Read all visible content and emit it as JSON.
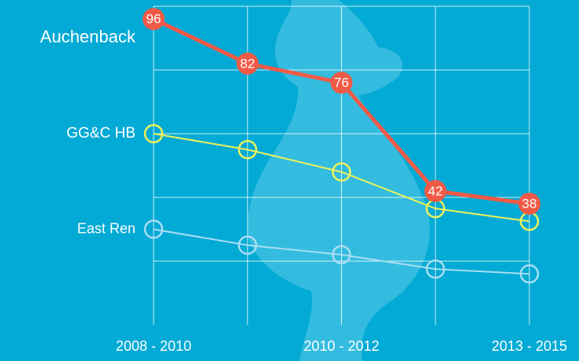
{
  "chart_data": {
    "type": "line",
    "categories": [
      "2008 - 2010",
      null,
      "2010 - 2012",
      null,
      "2013 - 2015"
    ],
    "series": [
      {
        "name": "Auchenback",
        "color": "#f15a47",
        "values": [
          96,
          82,
          76,
          42,
          38
        ],
        "labels": true
      },
      {
        "name": "GG&C HB",
        "color": "#eef25a",
        "values": [
          60,
          55,
          48,
          36.5,
          32.5
        ],
        "labels": false
      },
      {
        "name": "East Ren",
        "color": "#a9ddf2",
        "values": [
          30,
          25,
          22,
          17.5,
          16
        ],
        "labels": false
      }
    ],
    "ylim": [
      0,
      100
    ],
    "yticks": [
      0,
      20,
      40,
      60,
      80,
      100
    ],
    "grid": true
  }
}
